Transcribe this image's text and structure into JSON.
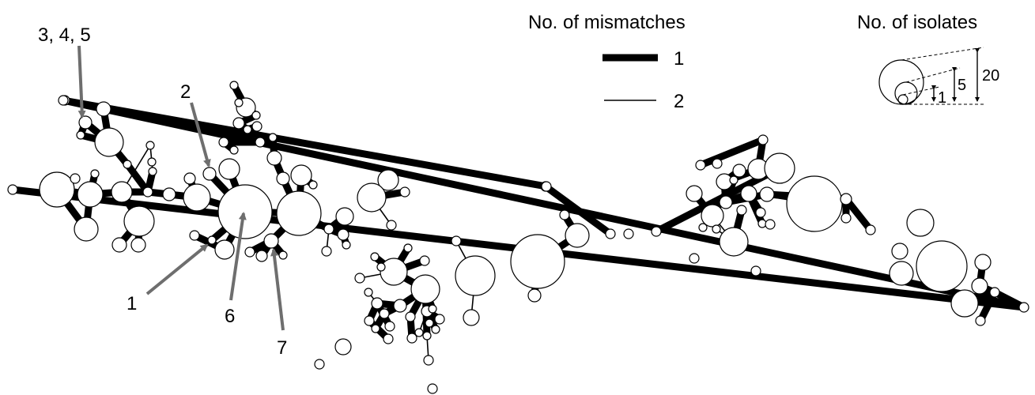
{
  "legend": {
    "mismatch_title": "No. of mismatches",
    "mismatch_1": "1",
    "mismatch_2": "2",
    "isolates_title": "No. of isolates",
    "isolates_20": "20",
    "isolates_5": "5",
    "isolates_1": "1"
  },
  "callouts": [
    {
      "id": "callout-1",
      "label": "1"
    },
    {
      "id": "callout-2",
      "label": "2"
    },
    {
      "id": "callout-345",
      "label": "3, 4, 5"
    },
    {
      "id": "callout-6",
      "label": "6"
    },
    {
      "id": "callout-7",
      "label": "7"
    }
  ],
  "colors": {
    "edge": "#000000",
    "node_fill": "#ffffff",
    "node_stroke": "#000000",
    "arrow": "#6e6e6e"
  },
  "edge_types": {
    "thick": "1 mismatch",
    "thin": "2 mismatches"
  }
}
